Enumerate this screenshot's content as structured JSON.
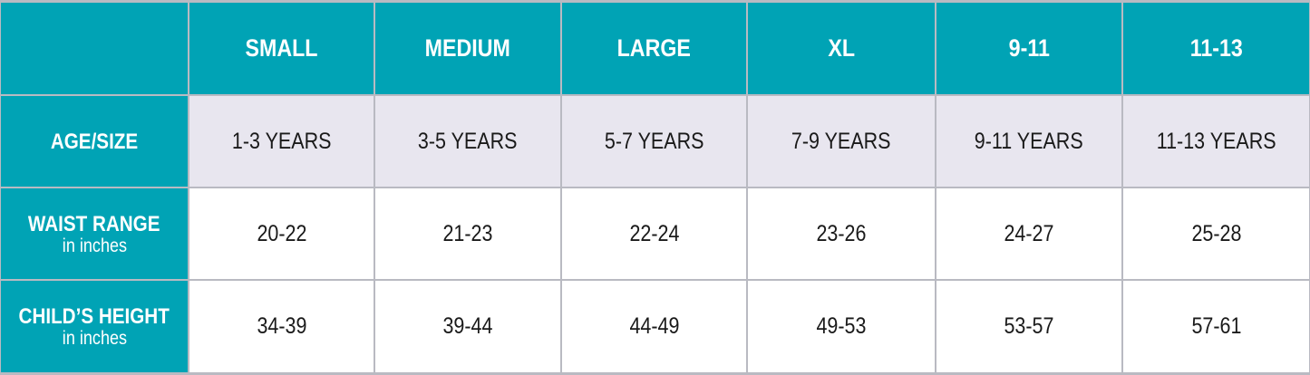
{
  "table": {
    "columns": [
      "SMALL",
      "MEDIUM",
      "LARGE",
      "XL",
      "9-11",
      "11-13"
    ],
    "rows": [
      {
        "label": "AGE/SIZE",
        "cells": [
          "1-3 YEARS",
          "3-5 YEARS",
          "5-7 YEARS",
          "7-9 YEARS",
          "9-11 YEARS",
          "11-13 YEARS"
        ]
      },
      {
        "label": "WAIST RANGE",
        "sublabel": "in inches",
        "cells": [
          "20-22",
          "21-23",
          "22-24",
          "23-26",
          "24-27",
          "25-28"
        ]
      },
      {
        "label": "CHILD’S HEIGHT",
        "sublabel": "in inches",
        "cells": [
          "34-39",
          "39-44",
          "44-49",
          "49-53",
          "53-57",
          "57-61"
        ]
      }
    ]
  }
}
